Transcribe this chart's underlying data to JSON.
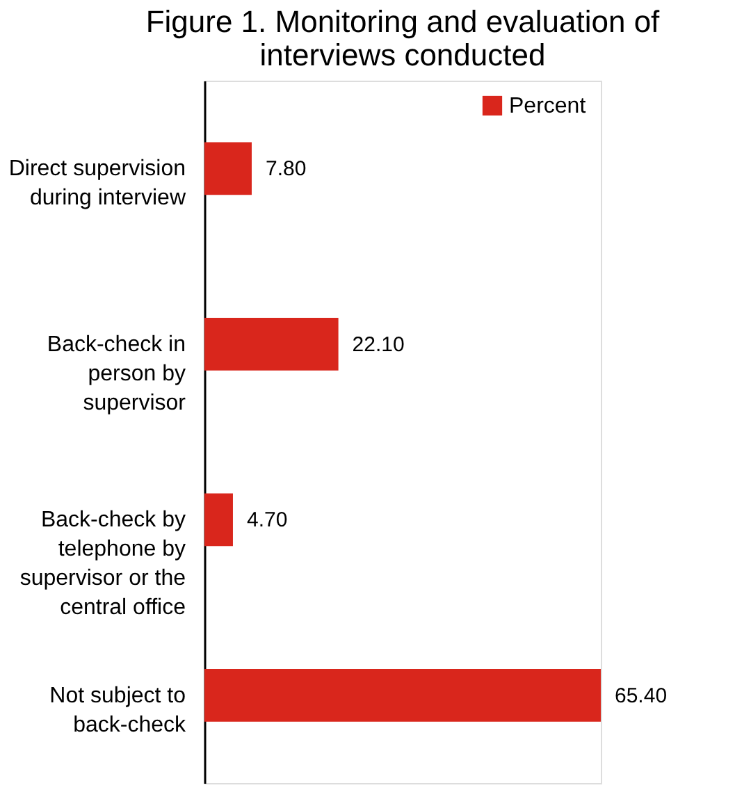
{
  "chart_data": {
    "type": "bar",
    "orientation": "horizontal",
    "title": "Figure 1. Monitoring and evaluation of interviews conducted",
    "categories": [
      "Direct supervision during interview",
      "Back-check in person by supervisor",
      "Back-check by telephone by supervisor or the central office",
      "Not subject to back-check"
    ],
    "series": [
      {
        "name": "Percent",
        "color": "#d9261c",
        "values": [
          7.8,
          22.1,
          4.7,
          65.4
        ],
        "value_labels": [
          "7.80",
          "22.10",
          "4.70",
          "65.40"
        ]
      }
    ],
    "legend": "top right"
  }
}
